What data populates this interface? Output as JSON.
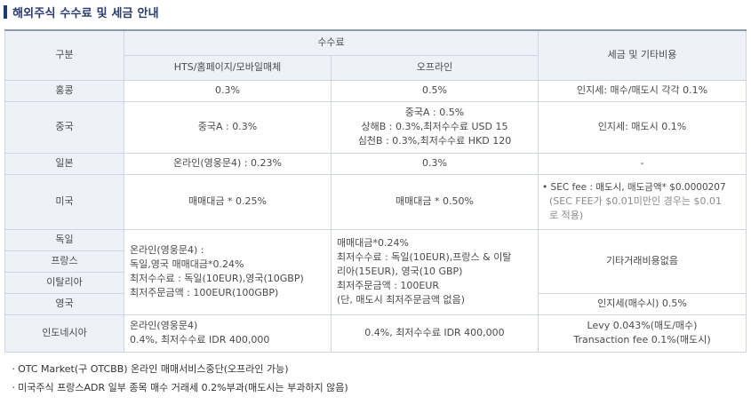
{
  "title": "해외주식 수수료 및 세금 안내",
  "headers": {
    "category": "구분",
    "fee": "수수료",
    "online": "HTS/홈페이지/모바일매체",
    "offline": "오프라인",
    "tax": "세금 및 기타비용"
  },
  "rows": {
    "hongkong": {
      "name": "홍콩",
      "online": "0.3%",
      "offline": "0.5%",
      "tax": "인지세: 매수/매도시 각각 0.1%"
    },
    "china": {
      "name": "중국",
      "online": "중국A : 0.3%",
      "offline": [
        "중국A : 0.5%",
        "상해B : 0.3%,최저수수료 USD 15",
        "심천B : 0.3%,최저수수료 HKD 120"
      ],
      "tax": "인지세: 매도시 0.1%"
    },
    "japan": {
      "name": "일본",
      "online": "온라인(영웅문4) : 0.23%",
      "offline": "0.3%",
      "tax": "-"
    },
    "usa": {
      "name": "미국",
      "online": "매매대금 * 0.25%",
      "offline": "매매대금 * 0.50%",
      "tax": "• SEC fee : 매도시, 매도금액* $0.0000207",
      "tax_note": [
        "(SEC FEE가 $0.01미만인 경우는 $0.01",
        "로 적용)"
      ]
    },
    "germany": {
      "name": "독일"
    },
    "france": {
      "name": "프랑스"
    },
    "italy": {
      "name": "이탈리아"
    },
    "uk": {
      "name": "영국",
      "tax": "인지세(매수시) 0.5%"
    },
    "europe_online": [
      "온라인(영웅문4) :",
      "독일,영국 매매대금*0.24%",
      "최저수수료 : 독일(10EUR),영국(10GBP)",
      "최저주문금액 : 100EUR(100GBP)"
    ],
    "europe_offline": [
      "매매대금*0.24%",
      "최저수수료 : 독일(10EUR),프랑스 & 이탈",
      "리아(15EUR), 영국(10 GBP)",
      "최저주문금액 : 100EUR",
      "(단, 매도시 최저주문금액 없음)"
    ],
    "europe_tax": "기타거래비용없음",
    "indonesia": {
      "name": "인도네시아",
      "online": [
        "온라인(영웅문4)",
        "0.4%, 최저수수료 IDR 400,000"
      ],
      "offline": "0.4%, 최저수수료 IDR 400,000",
      "tax": [
        "Levy 0.043%(매도/매수)",
        "Transaction fee 0.1%(매도시)"
      ]
    }
  },
  "notes": [
    "ㆍOTC Market(구 OTCBB) 온라인 매매서비스중단(오프라인 가능)",
    "ㆍ미국주식 프랑스ADR 일부 종목 매수 거래세 0.2%부과(매도시는 부과하지 않음)"
  ]
}
